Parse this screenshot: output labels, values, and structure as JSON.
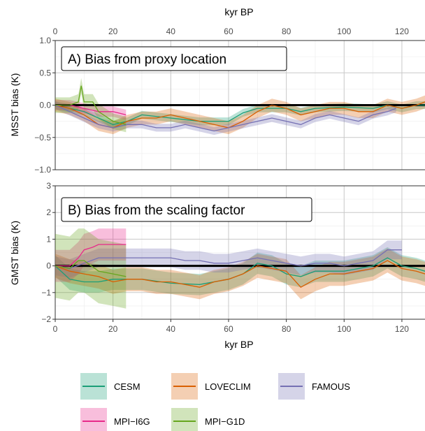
{
  "chart_data": {
    "type": "line",
    "x_axis_label": "kyr BP",
    "x_ticks": [
      "0",
      "20",
      "40",
      "60",
      "80",
      "100",
      "120"
    ],
    "xlim": [
      0,
      128
    ],
    "grid": true,
    "reference_line": 0,
    "panels": [
      {
        "label": "A) Bias from proxy location",
        "ylabel": "MSST bias (K)",
        "ylim": [
          -1.0,
          1.0
        ],
        "y_ticks": [
          "1.0",
          "0.5",
          "0.0",
          "−0.5",
          "−1.0"
        ],
        "y_tick_values": [
          1.0,
          0.5,
          0.0,
          -0.5,
          -1.0
        ],
        "series": [
          {
            "name": "CESM",
            "color": "#1b9e77",
            "x": [
              0,
              5,
              10,
              15,
              20,
              25,
              30,
              40,
              50,
              60,
              65,
              70,
              75,
              80,
              85,
              90,
              100,
              110,
              115,
              120,
              125,
              128
            ],
            "y": [
              0.0,
              -0.05,
              -0.1,
              -0.2,
              -0.3,
              -0.25,
              -0.15,
              -0.2,
              -0.25,
              -0.25,
              -0.12,
              -0.05,
              -0.05,
              -0.05,
              -0.1,
              -0.05,
              -0.03,
              -0.05,
              0.0,
              -0.05,
              0.0,
              0.0
            ],
            "band": 0.06
          },
          {
            "name": "LOVECLIM",
            "color": "#d95f02",
            "x": [
              0,
              5,
              10,
              15,
              20,
              25,
              30,
              35,
              40,
              45,
              50,
              55,
              60,
              65,
              70,
              75,
              80,
              85,
              90,
              95,
              100,
              105,
              110,
              115,
              120,
              125,
              128
            ],
            "y": [
              0.0,
              -0.05,
              -0.15,
              -0.3,
              -0.35,
              -0.25,
              -0.2,
              -0.2,
              -0.15,
              -0.2,
              -0.25,
              -0.3,
              -0.35,
              -0.25,
              -0.1,
              0.0,
              -0.05,
              -0.15,
              -0.1,
              -0.05,
              -0.05,
              -0.1,
              -0.1,
              0.0,
              -0.05,
              0.0,
              0.05
            ],
            "band": 0.1
          },
          {
            "name": "FAMOUS",
            "color": "#7570b3",
            "x": [
              0,
              5,
              10,
              15,
              20,
              25,
              30,
              35,
              40,
              45,
              50,
              55,
              60,
              65,
              70,
              75,
              80,
              85,
              90,
              95,
              100,
              105,
              110,
              115,
              118
            ],
            "y": [
              0.0,
              -0.1,
              -0.2,
              -0.3,
              -0.35,
              -0.3,
              -0.3,
              -0.35,
              -0.35,
              -0.3,
              -0.35,
              -0.4,
              -0.35,
              -0.3,
              -0.25,
              -0.2,
              -0.25,
              -0.3,
              -0.2,
              -0.15,
              -0.2,
              -0.25,
              -0.15,
              -0.1,
              -0.05
            ],
            "band": 0.06
          },
          {
            "name": "MPI−I6G",
            "color": "#e7298a",
            "x": [
              0,
              5,
              10,
              15,
              20,
              24.5
            ],
            "y": [
              0.0,
              0.0,
              -0.05,
              -0.1,
              -0.1,
              -0.15
            ],
            "band": 0.08
          },
          {
            "name": "MPI−G1D",
            "color": "#66a61e",
            "x": [
              0,
              5,
              8,
              9,
              10,
              13,
              15,
              20,
              24.5
            ],
            "y": [
              0.0,
              0.0,
              0.05,
              0.3,
              0.05,
              0.05,
              -0.1,
              -0.25,
              -0.3
            ],
            "band": 0.12
          }
        ]
      },
      {
        "label": "B) Bias from the scaling factor",
        "ylabel": "GMST bias (K)",
        "ylim": [
          -2,
          3
        ],
        "y_ticks": [
          "3",
          "2",
          "1",
          "0",
          "−1",
          "−2"
        ],
        "y_tick_values": [
          3,
          2,
          1,
          0,
          -1,
          -2
        ],
        "series": [
          {
            "name": "CESM",
            "color": "#1b9e77",
            "x": [
              0,
              5,
              10,
              15,
              20,
              25,
              30,
              40,
              50,
              60,
              65,
              70,
              75,
              80,
              85,
              90,
              100,
              110,
              115,
              120,
              125,
              128
            ],
            "y": [
              0.0,
              -0.5,
              -0.6,
              -0.6,
              -0.5,
              -0.5,
              -0.5,
              -0.65,
              -0.7,
              -0.5,
              -0.3,
              0.1,
              0.0,
              -0.3,
              -0.4,
              -0.2,
              -0.2,
              0.0,
              0.3,
              0.0,
              -0.1,
              -0.2
            ],
            "band": 0.4
          },
          {
            "name": "LOVECLIM",
            "color": "#d95f02",
            "x": [
              0,
              5,
              10,
              15,
              20,
              25,
              30,
              35,
              40,
              45,
              50,
              55,
              60,
              65,
              70,
              75,
              80,
              85,
              90,
              95,
              100,
              105,
              110,
              115,
              120,
              125,
              128
            ],
            "y": [
              0.0,
              -0.2,
              -0.3,
              -0.4,
              -0.6,
              -0.5,
              -0.5,
              -0.6,
              -0.6,
              -0.7,
              -0.8,
              -0.6,
              -0.5,
              -0.3,
              0.0,
              -0.1,
              -0.2,
              -0.8,
              -0.5,
              -0.3,
              -0.3,
              -0.2,
              -0.1,
              0.2,
              -0.1,
              -0.2,
              -0.3
            ],
            "band": 0.45
          },
          {
            "name": "FAMOUS",
            "color": "#7570b3",
            "x": [
              0,
              5,
              10,
              15,
              20,
              25,
              30,
              35,
              40,
              45,
              50,
              55,
              60,
              65,
              70,
              75,
              80,
              85,
              90,
              95,
              100,
              105,
              110,
              115,
              120
            ],
            "y": [
              0.0,
              -0.1,
              0.1,
              0.3,
              0.3,
              0.3,
              0.3,
              0.3,
              0.3,
              0.2,
              0.2,
              0.1,
              0.1,
              0.2,
              0.3,
              0.2,
              0.1,
              0.0,
              0.1,
              0.1,
              0.0,
              0.1,
              0.2,
              0.6,
              0.6
            ],
            "band": 0.35
          },
          {
            "name": "MPI−I6G",
            "color": "#e7298a",
            "x": [
              0,
              5,
              8,
              10,
              13,
              15,
              20,
              24.5
            ],
            "y": [
              0.0,
              0.0,
              0.3,
              0.6,
              0.7,
              0.8,
              0.8,
              0.8
            ],
            "band": 0.6
          },
          {
            "name": "MPI−G1D",
            "color": "#66a61e",
            "x": [
              0,
              5,
              8,
              10,
              15,
              20,
              24.5
            ],
            "y": [
              0.0,
              -0.1,
              0.2,
              0.2,
              -0.2,
              -0.3,
              -0.4
            ],
            "band": 1.2
          }
        ]
      }
    ],
    "legend": {
      "position": "bottom",
      "entries": [
        "CESM",
        "LOVECLIM",
        "FAMOUS",
        "MPI−I6G",
        "MPI−G1D"
      ]
    }
  }
}
